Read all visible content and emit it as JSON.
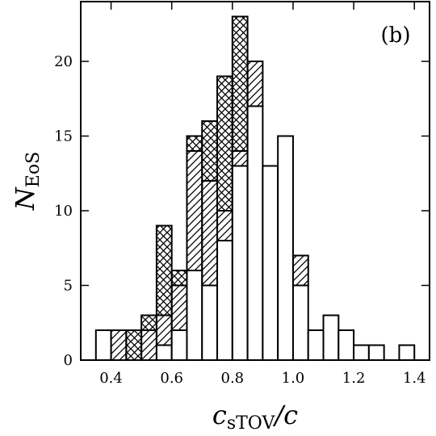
{
  "chart_data": {
    "type": "stacked-histogram",
    "annotation": "(b)",
    "xlabel": {
      "main": "c",
      "sub": "sTOV",
      "tail": "/c"
    },
    "ylabel": {
      "main": "N",
      "sub": "EoS"
    },
    "bins": [
      0.35,
      0.4,
      0.45,
      0.5,
      0.55,
      0.6,
      0.65,
      0.7,
      0.75,
      0.8,
      0.85,
      0.9,
      0.95,
      1.0,
      1.05,
      1.1,
      1.15,
      1.2,
      1.25,
      1.3,
      1.35,
      1.4
    ],
    "series": [
      {
        "pattern": "open",
        "color": "#000000",
        "values": [
          2,
          0,
          0,
          0,
          1,
          2,
          6,
          5,
          8,
          13,
          17,
          13,
          15,
          5,
          2,
          3,
          2,
          1,
          1,
          0,
          1
        ]
      },
      {
        "pattern": "hatch",
        "color": "#000000",
        "values": [
          0,
          2,
          0,
          2,
          2,
          3,
          8,
          7,
          2,
          1,
          3,
          0,
          0,
          2,
          0,
          0,
          0,
          0,
          0,
          0,
          0
        ]
      },
      {
        "pattern": "cross",
        "color": "#000000",
        "values": [
          0,
          0,
          2,
          1,
          6,
          1,
          1,
          4,
          9,
          9,
          0,
          0,
          0,
          0,
          0,
          0,
          0,
          0,
          0,
          0,
          0
        ]
      }
    ],
    "xlim": [
      0.3,
      1.45
    ],
    "ylim": [
      0,
      24
    ],
    "xticks": [
      0.4,
      0.6,
      0.8,
      {
        "value": 1,
        "label": "1.0"
      },
      1.2,
      1.4
    ],
    "yticks": [
      0,
      5,
      10,
      15,
      20
    ],
    "mirror_ticks": true
  }
}
